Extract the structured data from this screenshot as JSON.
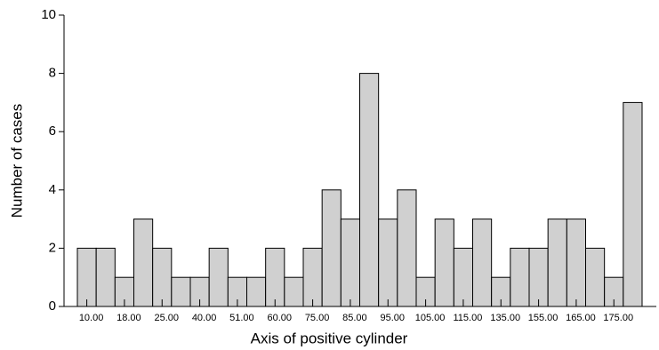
{
  "chart_data": {
    "type": "bar",
    "xlabel": "Axis of positive cylinder",
    "ylabel": "Number of cases",
    "categories": [
      "10.00",
      null,
      "18.00",
      null,
      "25.00",
      null,
      "40.00",
      null,
      "51.00",
      null,
      "60.00",
      null,
      "75.00",
      null,
      "85.00",
      null,
      "95.00",
      null,
      "105.00",
      null,
      "115.00",
      null,
      "135.00",
      null,
      "155.00",
      null,
      "165.00",
      null,
      "175.00",
      null
    ],
    "values": [
      2,
      2,
      1,
      3,
      2,
      1,
      1,
      2,
      1,
      1,
      2,
      1,
      2,
      4,
      3,
      8,
      3,
      4,
      1,
      3,
      2,
      3,
      1,
      2,
      2,
      3,
      3,
      2,
      1,
      7
    ],
    "color": "#d0d0d0",
    "ylim": [
      0,
      10
    ],
    "yticks": [
      0,
      2,
      4,
      6,
      8,
      10
    ]
  }
}
